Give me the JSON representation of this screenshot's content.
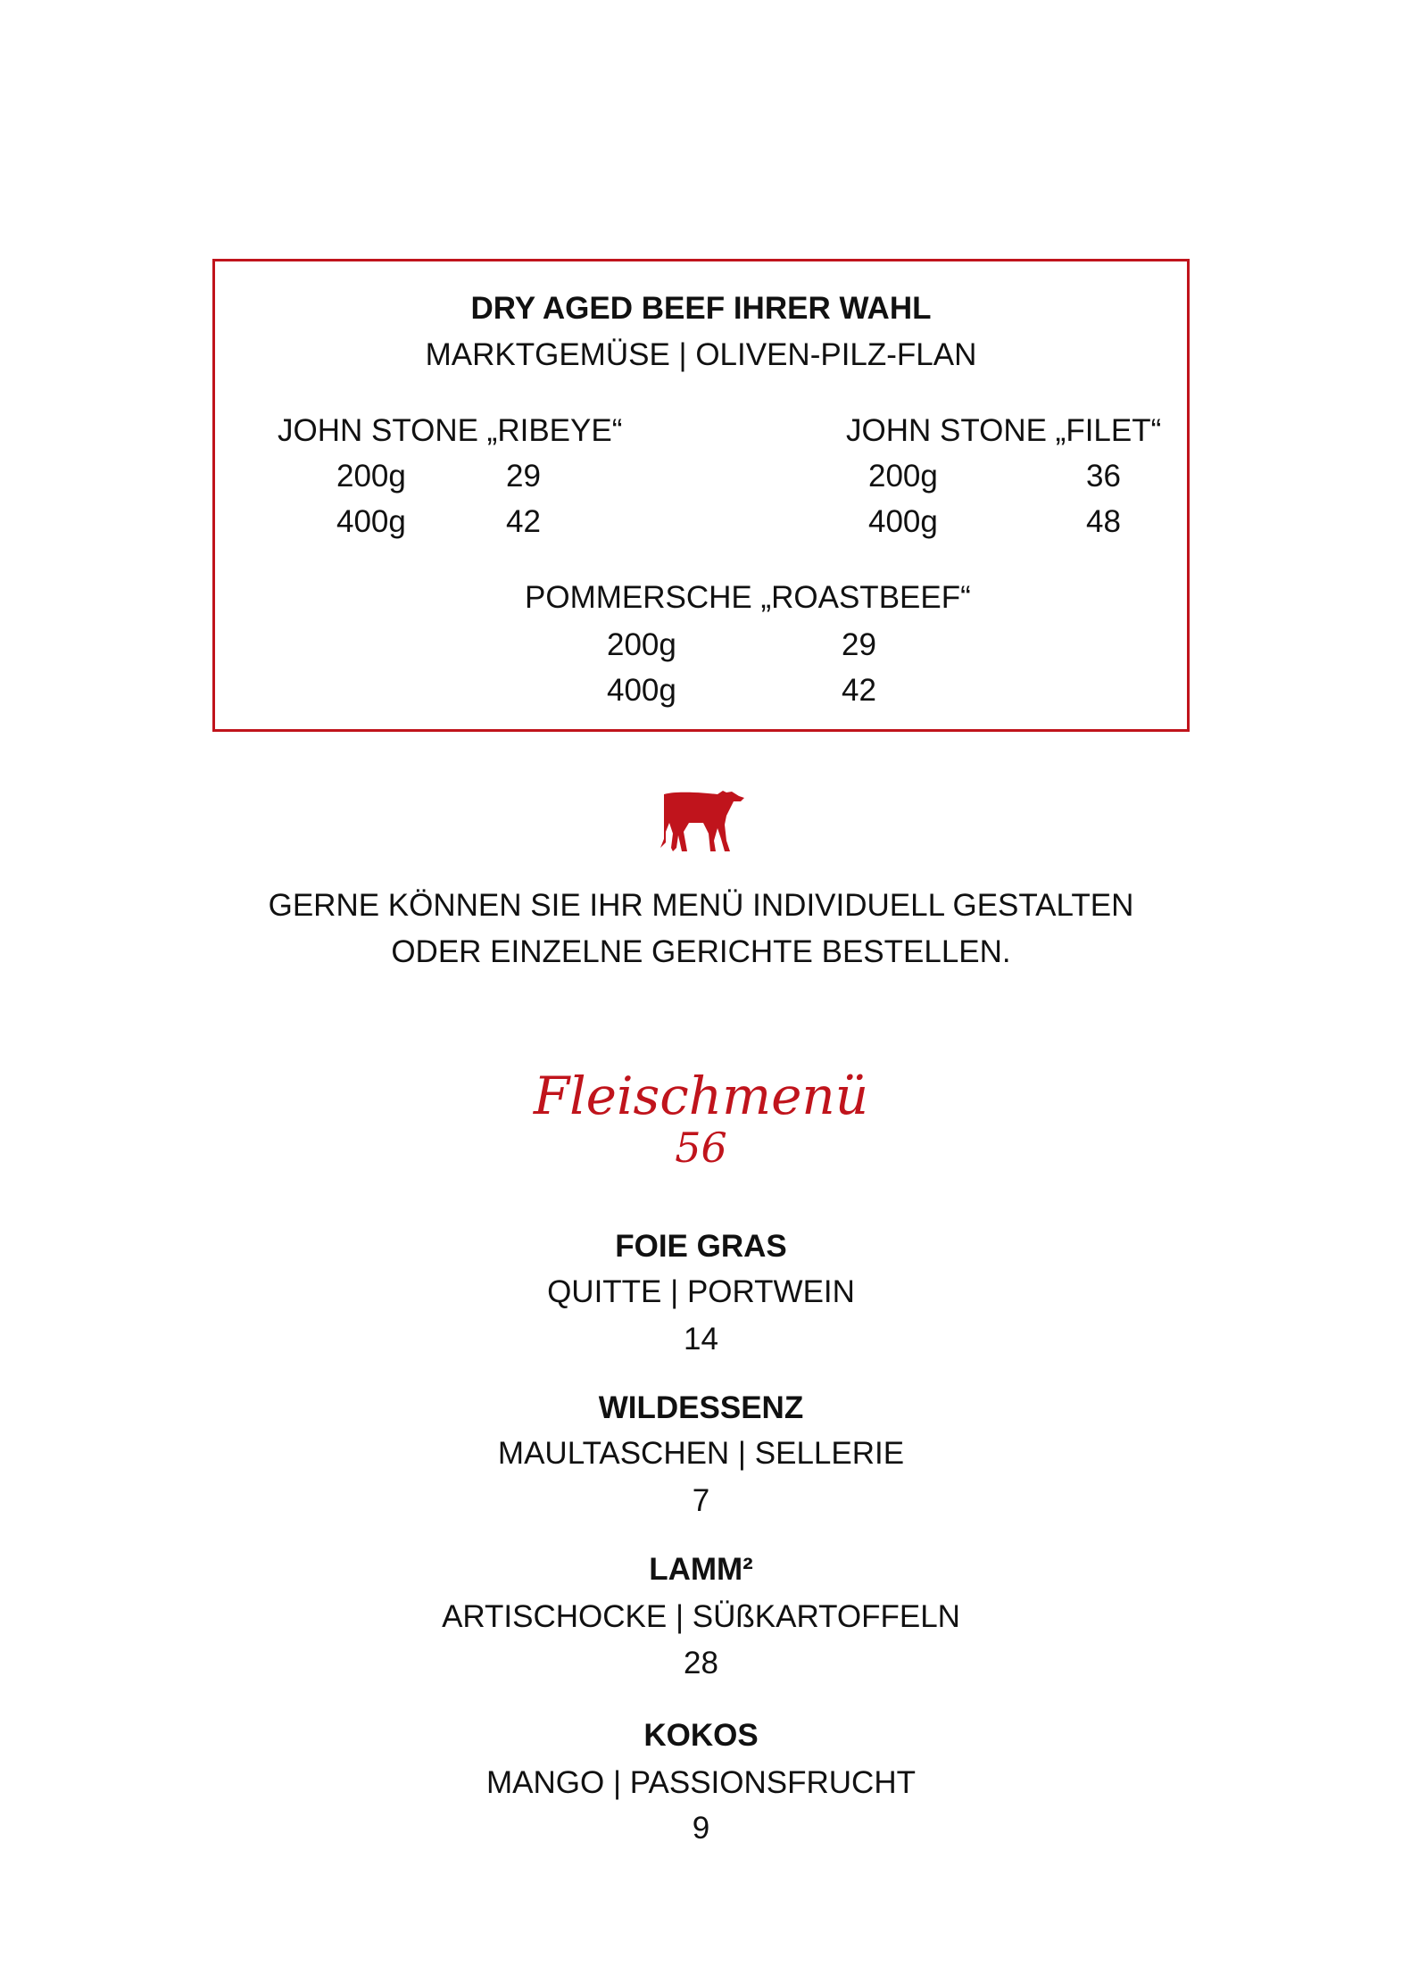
{
  "accent_color": "#c0141c",
  "dry_aged": {
    "title": "DRY AGED BEEF IHRER WAHL",
    "subtitle": "MARKTGEMÜSE | OLIVEN-PILZ-FLAN",
    "cuts": [
      {
        "name": "JOHN STONE „RIBEYE“",
        "options": [
          {
            "weight": "200g",
            "price": "29"
          },
          {
            "weight": "400g",
            "price": "42"
          }
        ]
      },
      {
        "name": "JOHN STONE „FILET“",
        "options": [
          {
            "weight": "200g",
            "price": "36"
          },
          {
            "weight": "400g",
            "price": "48"
          }
        ]
      },
      {
        "name": "POMMERSCHE „ROASTBEEF“",
        "options": [
          {
            "weight": "200g",
            "price": "29"
          },
          {
            "weight": "400g",
            "price": "42"
          }
        ]
      }
    ]
  },
  "cow_icon": "cow-icon",
  "note": {
    "line1": "GERNE KÖNNEN SIE IHR MENÜ INDIVIDUELL GESTALTEN",
    "line2": "ODER EINZELNE GERICHTE BESTELLEN."
  },
  "menu": {
    "title": "Fleischmenü",
    "price": "56",
    "courses": [
      {
        "name": "FOIE GRAS",
        "desc": "QUITTE | PORTWEIN",
        "price": "14"
      },
      {
        "name": "WILDESSENZ",
        "desc": "MAULTASCHEN | SELLERIE",
        "price": "7"
      },
      {
        "name": "LAMM²",
        "desc": "ARTISCHOCKE | SÜßKARTOFFELN",
        "price": "28"
      },
      {
        "name": "KOKOS",
        "desc": "MANGO | PASSIONSFRUCHT",
        "price": "9"
      }
    ]
  }
}
